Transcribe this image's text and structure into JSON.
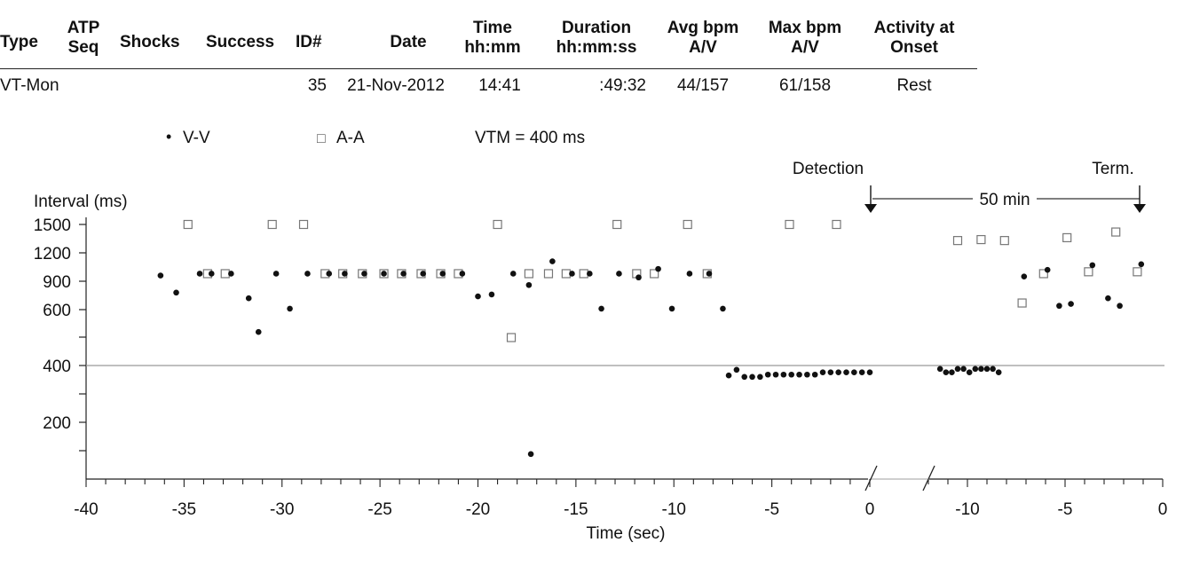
{
  "table": {
    "headers": {
      "type": "Type",
      "atp_1": "ATP",
      "atp_2": "Seq",
      "shocks": "Shocks",
      "success": "Success",
      "id": "ID#",
      "date": "Date",
      "time_1": "Time",
      "time_2": "hh:mm",
      "duration_1": "Duration",
      "duration_2": "hh:mm:ss",
      "avg_1": "Avg bpm",
      "avg_2": "A/V",
      "max_1": "Max bpm",
      "max_2": "A/V",
      "activity_1": "Activity at",
      "activity_2": "Onset"
    },
    "row": {
      "type": "VT-Mon",
      "id": "35",
      "date": "21-Nov-2012",
      "time": "14:41",
      "duration": ":49:32",
      "avg": "44/157",
      "max": "61/158",
      "activity": "Rest"
    }
  },
  "chart_data": {
    "type": "scatter",
    "legend": [
      {
        "symbol": "•",
        "name": "V-V"
      },
      {
        "symbol": "□",
        "name": "A-A"
      }
    ],
    "vtm_label": "VTM = 400 ms",
    "vtm_value": 400,
    "ylabel": "Interval (ms)",
    "xlabel": "Time (sec)",
    "detection_label": "Detection",
    "termination_label": "Term.",
    "gap_label": "50 min",
    "y_ticks": [
      1500,
      1200,
      900,
      600,
      400,
      200
    ],
    "left_panel": {
      "xlim": [
        -40,
        0
      ],
      "x_ticks": [
        "-40",
        "-35",
        "-30",
        "-25",
        "-20",
        "-15",
        "-10",
        "-5",
        "0"
      ],
      "vv": [
        [
          -36.2,
          960
        ],
        [
          -35.4,
          780
        ],
        [
          -34.2,
          980
        ],
        [
          -33.6,
          980
        ],
        [
          -32.6,
          980
        ],
        [
          -31.7,
          720
        ],
        [
          -31.2,
          520
        ],
        [
          -30.3,
          980
        ],
        [
          -29.6,
          610
        ],
        [
          -28.7,
          980
        ],
        [
          -27.6,
          980
        ],
        [
          -26.8,
          980
        ],
        [
          -25.8,
          980
        ],
        [
          -24.8,
          980
        ],
        [
          -23.8,
          980
        ],
        [
          -22.8,
          980
        ],
        [
          -21.8,
          980
        ],
        [
          -20.8,
          980
        ],
        [
          -20.0,
          740
        ],
        [
          -19.3,
          760
        ],
        [
          -18.2,
          980
        ],
        [
          -17.4,
          860
        ],
        [
          -16.2,
          1110
        ],
        [
          -15.2,
          980
        ],
        [
          -14.3,
          980
        ],
        [
          -13.7,
          610
        ],
        [
          -12.8,
          980
        ],
        [
          -11.8,
          940
        ],
        [
          -10.8,
          1030
        ],
        [
          -10.1,
          610
        ],
        [
          -9.2,
          980
        ],
        [
          -8.2,
          980
        ],
        [
          -7.5,
          610
        ],
        [
          -7.2,
          365
        ],
        [
          -6.8,
          385
        ],
        [
          -6.4,
          360
        ],
        [
          -6.0,
          360
        ],
        [
          -5.6,
          360
        ],
        [
          -5.2,
          368
        ],
        [
          -4.8,
          368
        ],
        [
          -4.4,
          368
        ],
        [
          -4.0,
          368
        ],
        [
          -3.6,
          368
        ],
        [
          -3.2,
          368
        ],
        [
          -2.8,
          368
        ],
        [
          -2.4,
          376
        ],
        [
          -2.0,
          376
        ],
        [
          -1.6,
          376
        ],
        [
          -1.2,
          376
        ],
        [
          -0.8,
          376
        ],
        [
          -0.4,
          376
        ],
        [
          0.0,
          376
        ],
        [
          -17.3,
          88
        ]
      ],
      "aa": [
        [
          -34.8,
          1500
        ],
        [
          -33.8,
          980
        ],
        [
          -32.9,
          980
        ],
        [
          -30.5,
          1500
        ],
        [
          -28.9,
          1500
        ],
        [
          -27.8,
          980
        ],
        [
          -26.9,
          980
        ],
        [
          -25.9,
          980
        ],
        [
          -24.8,
          980
        ],
        [
          -23.9,
          980
        ],
        [
          -22.9,
          980
        ],
        [
          -21.9,
          980
        ],
        [
          -21.0,
          980
        ],
        [
          -19.0,
          1500
        ],
        [
          -18.3,
          500
        ],
        [
          -17.4,
          980
        ],
        [
          -16.4,
          980
        ],
        [
          -15.5,
          980
        ],
        [
          -14.6,
          980
        ],
        [
          -12.9,
          1500
        ],
        [
          -11.9,
          980
        ],
        [
          -11.0,
          980
        ],
        [
          -9.3,
          1500
        ],
        [
          -8.3,
          980
        ],
        [
          -4.1,
          1500
        ],
        [
          -1.7,
          1500
        ]
      ]
    },
    "right_panel": {
      "xlim": [
        -15,
        0
      ],
      "x_ticks": [
        "-10",
        "-5",
        "0"
      ],
      "vv": [
        [
          -11.4,
          388
        ],
        [
          -11.1,
          376
        ],
        [
          -10.8,
          376
        ],
        [
          -10.5,
          388
        ],
        [
          -10.2,
          388
        ],
        [
          -9.9,
          376
        ],
        [
          -9.6,
          388
        ],
        [
          -9.3,
          388
        ],
        [
          -9.0,
          388
        ],
        [
          -8.7,
          388
        ],
        [
          -8.4,
          376
        ],
        [
          -7.1,
          950
        ],
        [
          -5.9,
          1020
        ],
        [
          -5.3,
          640
        ],
        [
          -4.7,
          660
        ],
        [
          -3.6,
          1070
        ],
        [
          -2.8,
          720
        ],
        [
          -2.2,
          640
        ],
        [
          -1.1,
          1080
        ]
      ],
      "aa": [
        [
          -10.5,
          1330
        ],
        [
          -9.3,
          1340
        ],
        [
          -8.1,
          1330
        ],
        [
          -7.2,
          670
        ],
        [
          -6.1,
          980
        ],
        [
          -4.9,
          1360
        ],
        [
          -3.8,
          1000
        ],
        [
          -2.4,
          1420
        ],
        [
          -1.3,
          1000
        ]
      ]
    }
  }
}
